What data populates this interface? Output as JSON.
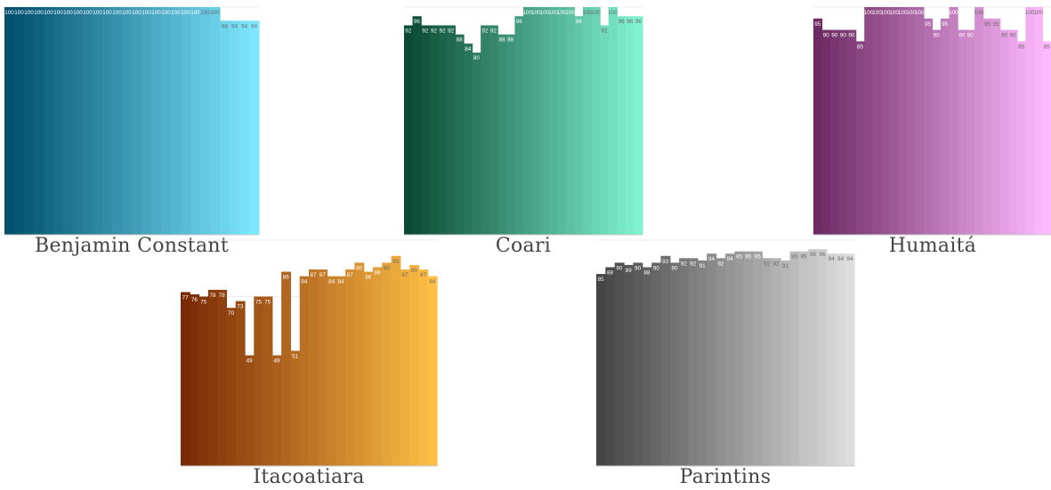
{
  "chart_data": [
    {
      "type": "bar",
      "title": "Benjamin Constant",
      "ylim": [
        0,
        100
      ],
      "grid": true,
      "color_start": "#00506e",
      "color_end": "#7ee6ff",
      "values": [
        100,
        100,
        100,
        100,
        100,
        100,
        100,
        100,
        100,
        100,
        100,
        100,
        100,
        100,
        100,
        100,
        100,
        100,
        100,
        100,
        100,
        100,
        94,
        94,
        94,
        94
      ]
    },
    {
      "type": "bar",
      "title": "Coari",
      "ylim": [
        0,
        100
      ],
      "grid": true,
      "color_start": "#0a4a33",
      "color_end": "#80f2d0",
      "values": [
        92,
        96,
        92,
        92,
        92,
        92,
        88,
        84,
        80,
        92,
        92,
        88,
        88,
        96,
        100,
        100,
        100,
        100,
        100,
        100,
        96,
        100,
        100,
        92,
        100,
        96,
        96,
        96
      ]
    },
    {
      "type": "bar",
      "title": "Humaitá",
      "ylim": [
        0,
        100
      ],
      "grid": true,
      "color_start": "#6e2a62",
      "color_end": "#ffbaff",
      "values": [
        95,
        90,
        90,
        90,
        90,
        85,
        100,
        100,
        100,
        100,
        100,
        100,
        100,
        95,
        90,
        95,
        100,
        90,
        90,
        100,
        95,
        95,
        90,
        90,
        85,
        100,
        100,
        85
      ]
    },
    {
      "type": "bar",
      "title": "Itacoatiara",
      "ylim": [
        0,
        100
      ],
      "grid": true,
      "color_start": "#7a2a05",
      "color_end": "#ffbe45",
      "values": [
        77,
        76,
        75,
        78,
        78,
        70,
        73,
        49,
        75,
        75,
        49,
        86,
        51,
        84,
        87,
        87,
        84,
        84,
        87,
        90,
        86,
        88,
        90,
        93,
        87,
        89,
        87,
        84
      ]
    },
    {
      "type": "bar",
      "title": "Parintins",
      "ylim": [
        0,
        100
      ],
      "grid": true,
      "color_start": "#454545",
      "color_end": "#dedede",
      "values": [
        85,
        88,
        90,
        89,
        90,
        88,
        90,
        93,
        90,
        92,
        92,
        91,
        94,
        92,
        94,
        95,
        95,
        95,
        92,
        92,
        91,
        95,
        95,
        96,
        96,
        94,
        94,
        94
      ]
    }
  ]
}
